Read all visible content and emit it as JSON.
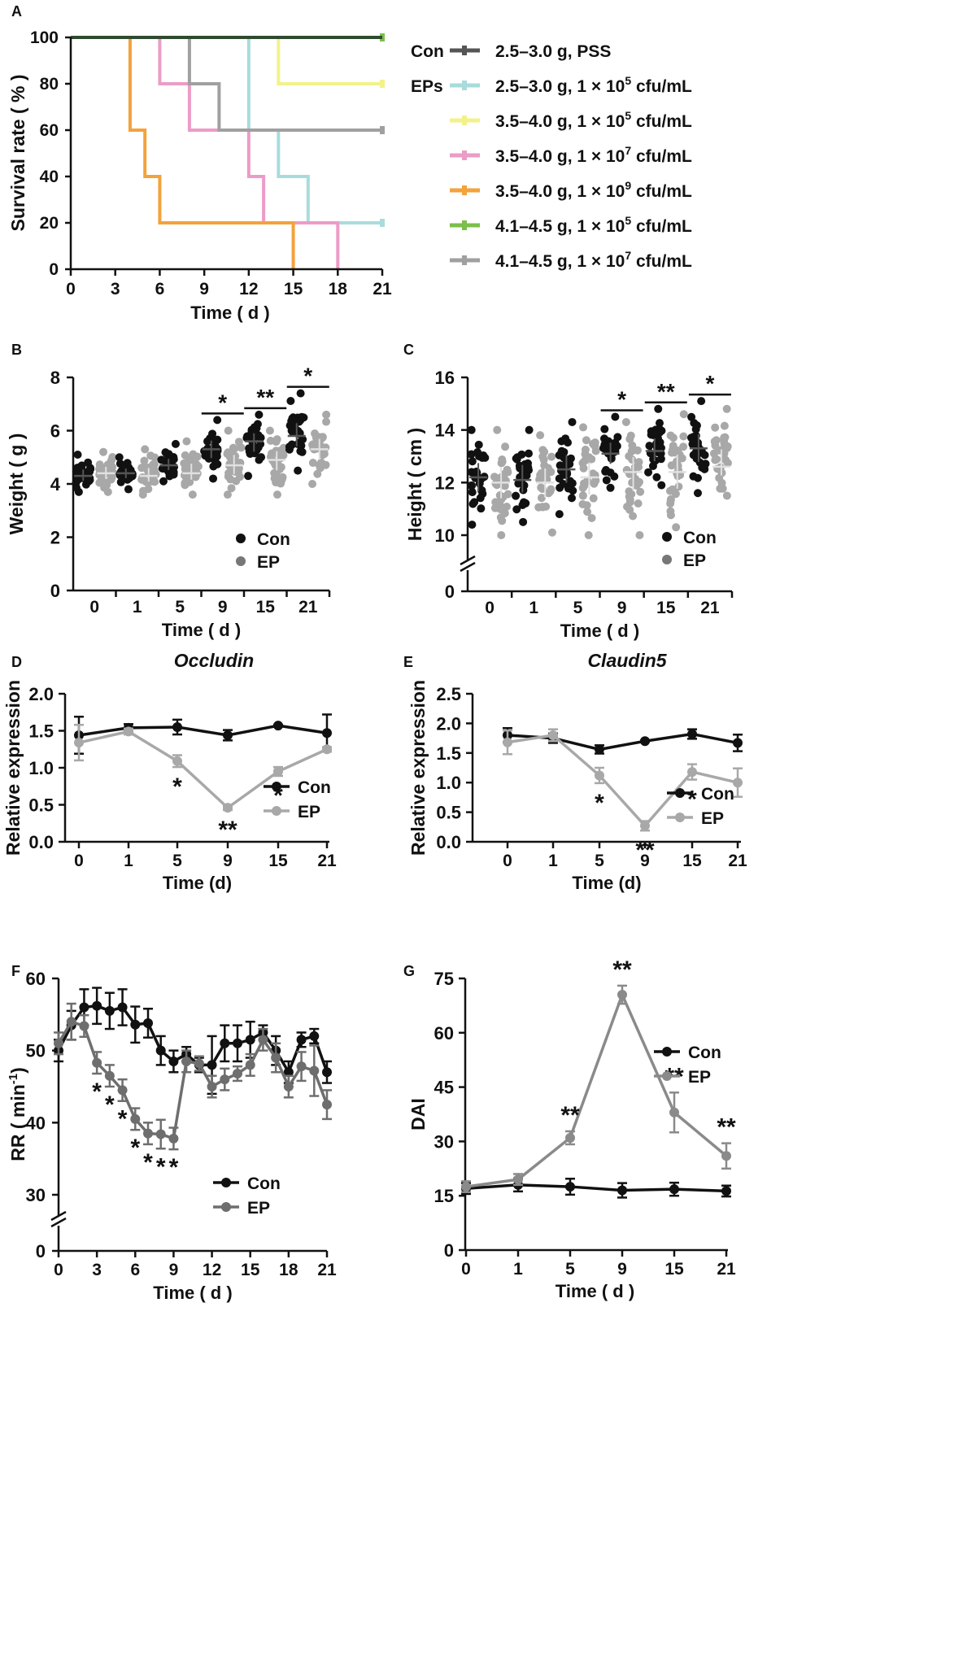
{
  "chart_data": [
    {
      "panel": "A",
      "type": "line",
      "subtype": "survival-step",
      "xlabel": "Time ( d )",
      "ylabel": "Survival rate ( % )",
      "xlim": [
        0,
        21
      ],
      "ylim": [
        0,
        100
      ],
      "xticks": [
        "0",
        "3",
        "6",
        "9",
        "12",
        "15",
        "18",
        "21"
      ],
      "yticks": [
        "0",
        "20",
        "40",
        "60",
        "80",
        "100"
      ],
      "legend_groups": [
        {
          "label": "Con",
          "start": 0
        },
        {
          "label": "EPs",
          "start": 1
        }
      ],
      "series": [
        {
          "name": "2.5–3.0 g, PSS",
          "label_pre": "2.5–3.0 g, PSS",
          "label_exp": "",
          "label_post": "",
          "color": "#555555",
          "steps": [
            [
              0,
              100
            ],
            [
              21,
              100
            ]
          ]
        },
        {
          "name": "2.5–3.0 g, 1 × 10^5 cfu/mL",
          "label_pre": "2.5–3.0 g, 1 × 10",
          "label_exp": "5",
          "label_post": " cfu/mL",
          "color": "#a8dcdc",
          "steps": [
            [
              0,
              100
            ],
            [
              12,
              60
            ],
            [
              14,
              40
            ],
            [
              16,
              20
            ],
            [
              21,
              20
            ]
          ]
        },
        {
          "name": "3.5–4.0 g, 1 × 10^5 cfu/mL",
          "label_pre": "3.5–4.0 g, 1 × 10",
          "label_exp": "5",
          "label_post": " cfu/mL",
          "color": "#f2f28a",
          "steps": [
            [
              0,
              100
            ],
            [
              14,
              80
            ],
            [
              21,
              80
            ]
          ]
        },
        {
          "name": "3.5–4.0 g, 1 × 10^7 cfu/mL",
          "label_pre": "3.5–4.0 g, 1 × 10",
          "label_exp": "7",
          "label_post": " cfu/mL",
          "color": "#ec9cc6",
          "steps": [
            [
              0,
              100
            ],
            [
              6,
              80
            ],
            [
              8,
              60
            ],
            [
              12,
              40
            ],
            [
              13,
              20
            ],
            [
              18,
              0
            ]
          ]
        },
        {
          "name": "3.5–4.0 g, 1 × 10^9 cfu/mL",
          "label_pre": "3.5–4.0 g, 1 × 10",
          "label_exp": "9",
          "label_post": " cfu/mL",
          "color": "#f4a23c",
          "steps": [
            [
              0,
              100
            ],
            [
              4,
              60
            ],
            [
              5,
              40
            ],
            [
              6,
              20
            ],
            [
              15,
              0
            ]
          ]
        },
        {
          "name": "4.1–4.5 g, 1 × 10^5 cfu/mL",
          "label_pre": "4.1–4.5 g, 1 × 10",
          "label_exp": "5",
          "label_post": " cfu/mL",
          "color": "#7bbf4a",
          "steps": [
            [
              0,
              100
            ],
            [
              21,
              100
            ]
          ]
        },
        {
          "name": "4.1–4.5 g, 1 × 10^7 cfu/mL",
          "label_pre": "4.1–4.5 g, 1 × 10",
          "label_exp": "7",
          "label_post": " cfu/mL",
          "color": "#a0a0a0",
          "steps": [
            [
              0,
              100
            ],
            [
              8,
              80
            ],
            [
              10,
              60
            ],
            [
              21,
              60
            ]
          ]
        }
      ]
    },
    {
      "panel": "B",
      "type": "scatter",
      "xlabel": "Time ( d )",
      "ylabel": "Weight ( g )",
      "ylim": [
        0,
        8
      ],
      "yticks": [
        "0",
        "2",
        "4",
        "6",
        "8"
      ],
      "categories": [
        "0",
        "1",
        "5",
        "9",
        "15",
        "21"
      ],
      "series": [
        {
          "name": "Con",
          "color": "#111111",
          "mean": [
            4.3,
            4.4,
            4.7,
            5.3,
            5.6,
            5.8
          ],
          "min": [
            3.7,
            3.8,
            4.1,
            4.2,
            4.3,
            4.5
          ],
          "max": [
            5.1,
            5.0,
            5.5,
            6.4,
            6.6,
            7.4
          ]
        },
        {
          "name": "EP",
          "color": "#a8a8a8",
          "mean": [
            4.4,
            4.3,
            4.4,
            4.7,
            4.9,
            5.3
          ],
          "min": [
            3.7,
            3.6,
            3.6,
            3.6,
            3.6,
            4.0
          ],
          "max": [
            5.2,
            5.3,
            5.6,
            6.0,
            6.0,
            6.6
          ]
        }
      ],
      "significance": [
        {
          "category": "9",
          "label": "*"
        },
        {
          "category": "15",
          "label": "**"
        },
        {
          "category": "21",
          "label": "*"
        }
      ]
    },
    {
      "panel": "C",
      "type": "scatter",
      "xlabel": "Time ( d )",
      "ylabel": "Height ( cm )",
      "ylim": [
        10,
        16
      ],
      "axis_break": true,
      "yticks": [
        "0",
        "10",
        "12",
        "14",
        "16"
      ],
      "categories": [
        "0",
        "1",
        "5",
        "9",
        "15",
        "21"
      ],
      "series": [
        {
          "name": "Con",
          "color": "#111111",
          "mean": [
            12.2,
            12.1,
            12.5,
            13.1,
            13.2,
            13.3
          ],
          "min": [
            10.4,
            10.5,
            10.8,
            11.8,
            11.9,
            11.6
          ],
          "max": [
            14.0,
            14.0,
            14.3,
            14.5,
            14.8,
            15.1
          ]
        },
        {
          "name": "EP",
          "color": "#a8a8a8",
          "mean": [
            12.0,
            12.0,
            12.2,
            12.4,
            12.4,
            12.6
          ],
          "min": [
            10.0,
            10.1,
            10.0,
            10.0,
            10.3,
            11.5
          ],
          "max": [
            14.0,
            13.8,
            14.1,
            14.3,
            14.6,
            14.8
          ]
        }
      ],
      "significance": [
        {
          "category": "9",
          "label": "*"
        },
        {
          "category": "15",
          "label": "**"
        },
        {
          "category": "21",
          "label": "*"
        }
      ]
    },
    {
      "panel": "D",
      "type": "line",
      "title": "Occludin",
      "xlabel": "Time (d)",
      "ylabel": "Relative expression",
      "xlim": [
        -1,
        21
      ],
      "ylim": [
        0,
        2.0
      ],
      "yticks": [
        "0.0",
        "0.5",
        "1.0",
        "1.5",
        "2.0"
      ],
      "x": [
        0,
        1,
        5,
        9,
        15,
        21
      ],
      "xtick_labels": [
        "0",
        "1",
        "5",
        "9",
        "15",
        "21"
      ],
      "series": [
        {
          "name": "Con",
          "color": "#111111",
          "values": [
            1.44,
            1.54,
            1.55,
            1.44,
            1.57,
            1.47
          ],
          "errors": [
            0.25,
            0.05,
            0.1,
            0.07,
            0.01,
            0.25
          ]
        },
        {
          "name": "EP",
          "color": "#a8a8a8",
          "values": [
            1.34,
            1.49,
            1.09,
            0.46,
            0.95,
            1.25
          ],
          "errors": [
            0.24,
            0.04,
            0.08,
            0.03,
            0.06,
            0.03
          ]
        }
      ],
      "significance": [
        {
          "x": 5,
          "label": "*"
        },
        {
          "x": 9,
          "label": "**"
        },
        {
          "x": 15,
          "label": "*"
        }
      ]
    },
    {
      "panel": "E",
      "type": "line",
      "title": "Claudin5",
      "xlabel": "Time (d)",
      "ylabel": "Relative expression",
      "xlim": [
        -3,
        21
      ],
      "ylim": [
        0,
        2.5
      ],
      "yticks": [
        "0.0",
        "0.5",
        "1.0",
        "1.5",
        "2.0",
        "2.5"
      ],
      "x": [
        0,
        1,
        5,
        9,
        15,
        21
      ],
      "xtick_labels": [
        "0",
        "1",
        "5",
        "9",
        "15",
        "21"
      ],
      "series": [
        {
          "name": "Con",
          "color": "#111111",
          "values": [
            1.8,
            1.75,
            1.56,
            1.7,
            1.82,
            1.67
          ],
          "errors": [
            0.12,
            0.08,
            0.07,
            0.01,
            0.08,
            0.14
          ]
        },
        {
          "name": "EP",
          "color": "#a8a8a8",
          "values": [
            1.68,
            1.8,
            1.12,
            0.27,
            1.18,
            1.0
          ],
          "errors": [
            0.2,
            0.1,
            0.13,
            0.08,
            0.13,
            0.24
          ]
        }
      ],
      "significance": [
        {
          "x": 5,
          "label": "*"
        },
        {
          "x": 9,
          "label": "**"
        },
        {
          "x": 15,
          "label": "*"
        }
      ]
    },
    {
      "panel": "F",
      "type": "line",
      "xlabel": "Time ( d )",
      "ylabel_pre": "RR ( min",
      "ylabel_exp": "-1",
      "ylabel_post": ")",
      "ylabel": "RR ( min^-1 )",
      "xlim": [
        0,
        21
      ],
      "ylim": [
        30,
        60
      ],
      "axis_break": true,
      "yticks": [
        "0",
        "30",
        "40",
        "50",
        "60"
      ],
      "xticks": [
        "0",
        "3",
        "6",
        "9",
        "12",
        "15",
        "18",
        "21"
      ],
      "x": [
        0,
        1,
        2,
        3,
        4,
        5,
        6,
        7,
        8,
        9,
        10,
        11,
        12,
        13,
        14,
        15,
        16,
        17,
        18,
        19,
        20,
        21
      ],
      "series": [
        {
          "name": "Con",
          "color": "#111111",
          "values": [
            50,
            53.5,
            56,
            56.2,
            55.5,
            56,
            53.6,
            53.8,
            50,
            48.5,
            49.5,
            48,
            48,
            51,
            51,
            51.5,
            52.5,
            50,
            47,
            51.5,
            52,
            47
          ],
          "errors": [
            1.5,
            2,
            2.5,
            2.5,
            2.5,
            2.5,
            2.5,
            2,
            2,
            1.5,
            1,
            1,
            4,
            2.5,
            2.5,
            2.5,
            1,
            2,
            1.5,
            1,
            1,
            1.5
          ]
        },
        {
          "name": "EP",
          "color": "#6e6e6e",
          "values": [
            51,
            54,
            53.4,
            48.3,
            46.5,
            44.5,
            40.5,
            38.5,
            38.4,
            37.8,
            48.5,
            48.2,
            45,
            46,
            46.8,
            48,
            51.5,
            49,
            45,
            47.8,
            47.2,
            42.5
          ],
          "errors": [
            1.5,
            2.5,
            1.5,
            1.5,
            1.5,
            1.5,
            1.5,
            1.5,
            2,
            1.5,
            1.5,
            1,
            1.5,
            1.5,
            1,
            1.5,
            1.5,
            2,
            1.5,
            2,
            3.5,
            2
          ]
        }
      ],
      "significance": [
        {
          "x": 3,
          "label": "*"
        },
        {
          "x": 4,
          "label": "*"
        },
        {
          "x": 5,
          "label": "*"
        },
        {
          "x": 6,
          "label": "*"
        },
        {
          "x": 7,
          "label": "*"
        },
        {
          "x": 8,
          "label": "*"
        },
        {
          "x": 9,
          "label": "*"
        }
      ]
    },
    {
      "panel": "G",
      "type": "line",
      "xlabel": "Time ( d )",
      "ylabel": "DAI",
      "xlim": [
        0,
        21
      ],
      "ylim": [
        0,
        75
      ],
      "yticks": [
        "0",
        "15",
        "30",
        "45",
        "60",
        "75"
      ],
      "x": [
        0,
        1,
        5,
        9,
        15,
        21
      ],
      "xtick_labels": [
        "0",
        "1",
        "5",
        "9",
        "15",
        "21"
      ],
      "series": [
        {
          "name": "Con",
          "color": "#111111",
          "values": [
            17,
            18,
            17.5,
            16.5,
            16.8,
            16.3
          ],
          "errors": [
            1.5,
            1.8,
            2.2,
            2,
            1.8,
            1.5
          ]
        },
        {
          "name": "EP",
          "color": "#8a8a8a",
          "values": [
            17.5,
            19.5,
            31,
            70.5,
            38,
            26
          ],
          "errors": [
            1.5,
            1.5,
            1.8,
            2.5,
            5.5,
            3.5
          ]
        }
      ],
      "significance": [
        {
          "x": 5,
          "label": "**"
        },
        {
          "x": 9,
          "label": "**"
        },
        {
          "x": 15,
          "label": "**"
        },
        {
          "x": 21,
          "label": "**"
        }
      ]
    }
  ]
}
